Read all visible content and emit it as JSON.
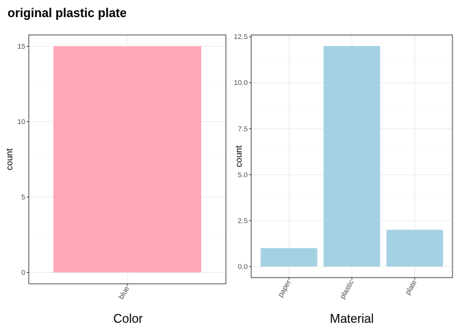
{
  "title": "original plastic plate",
  "colors": {
    "panel_border": "#333333",
    "grid_major": "#ebebeb",
    "grid_minor": "#f5f5f5",
    "tick_text": "#4d4d4d"
  },
  "chart_data": [
    {
      "type": "bar",
      "xlabel": "Color",
      "ylabel": "count",
      "categories": [
        "blue"
      ],
      "values": [
        15
      ],
      "ylim": [
        -0.75,
        15.75
      ],
      "yticks": [
        0,
        5,
        10,
        15
      ],
      "ytick_labels": [
        "0",
        "5",
        "10",
        "15"
      ],
      "bar_color": "#ffa8b8",
      "grid": true
    },
    {
      "type": "bar",
      "xlabel": "Material",
      "ylabel": "count",
      "categories": [
        "paper",
        "plastic",
        "plate"
      ],
      "values": [
        1,
        12,
        2
      ],
      "ylim": [
        -0.6,
        12.6
      ],
      "yticks": [
        0,
        2.5,
        5,
        7.5,
        10,
        12.5
      ],
      "ytick_labels": [
        "0.0",
        "2.5",
        "5.0",
        "7.5",
        "10.0",
        "12.5"
      ],
      "bar_color": "#a3d1e2",
      "grid": true
    }
  ]
}
